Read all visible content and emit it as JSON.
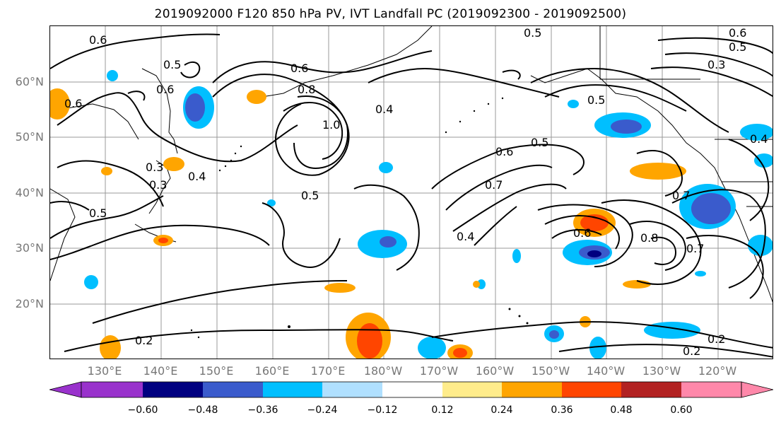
{
  "title": "2019092000 F120 850 hPa PV, IVT Landfall PC (2019092300 - 2019092500)",
  "lat_labels": [
    "60°N",
    "50°N",
    "40°N",
    "30°N",
    "20°N"
  ],
  "lon_labels": [
    "130°E",
    "140°E",
    "150°E",
    "160°E",
    "170°E",
    "180°W",
    "170°W",
    "160°W",
    "150°W",
    "140°W",
    "130°W",
    "120°W"
  ],
  "contour_labels": [
    "0.6",
    "0.5",
    "0.6",
    "0.5",
    "0.3",
    "0.6",
    "0.5",
    "0.6",
    "0.8",
    "0.4",
    "1.0",
    "0.5",
    "0.6",
    "0.5",
    "0.7",
    "0.4",
    "0.5",
    "0.3",
    "0.4",
    "0.5",
    "0.3",
    "0.6",
    "0.8",
    "0.7",
    "0.7",
    "0.2",
    "0.2",
    "0.2",
    "0.4",
    "0.6"
  ],
  "colorbar": {
    "colors": [
      "#9932cc",
      "#000080",
      "#3a5bcc",
      "#00bfff",
      "#b0e0ff",
      "#ffffff",
      "#ffec8b",
      "#ffa500",
      "#ff4500",
      "#b22222",
      "#ff88aa"
    ],
    "tick_labels": [
      "−0.60",
      "−0.48",
      "−0.36",
      "−0.24",
      "−0.12",
      "0.12",
      "0.24",
      "0.36",
      "0.48",
      "0.60"
    ]
  }
}
